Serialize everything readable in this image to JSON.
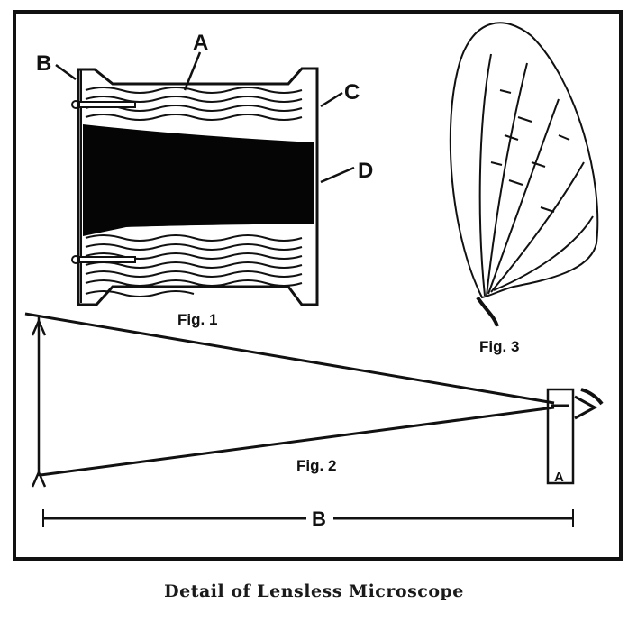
{
  "caption": "Detail of Lensless Microscope",
  "figures": {
    "fig1": {
      "label": "Fig. 1",
      "parts": [
        "A",
        "B",
        "C",
        "D"
      ]
    },
    "fig2": {
      "label": "Fig. 2",
      "dimension_a": "A",
      "dimension_b": "B"
    },
    "fig3": {
      "label": "Fig. 3"
    }
  },
  "colors": {
    "ink": "#111111",
    "paper": "#ffffff"
  }
}
